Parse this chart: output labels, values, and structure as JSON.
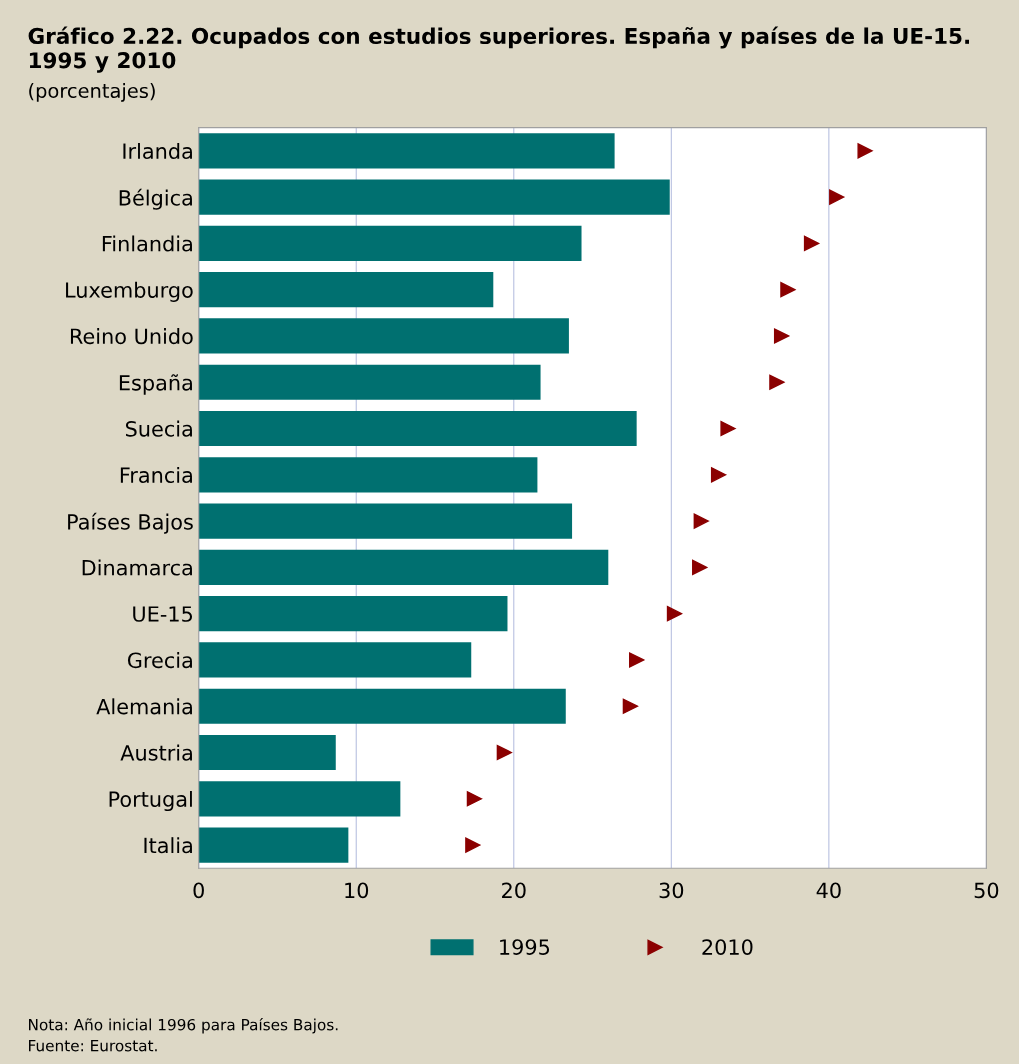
{
  "chart_data": {
    "type": "bar",
    "orientation": "horizontal",
    "title": "Gráfico 2.22. Ocupados con estudios superiores. España y países de la UE-15. 1995 y 2010",
    "subtitle": "(porcentajes)",
    "categories": [
      "Irlanda",
      "Bélgica",
      "Finlandia",
      "Luxemburgo",
      "Reino Unido",
      "España",
      "Suecia",
      "Francia",
      "Países Bajos",
      "Dinamarca",
      "UE-15",
      "Grecia",
      "Alemania",
      "Austria",
      "Portugal",
      "Italia"
    ],
    "series": [
      {
        "name": "1995",
        "color": "#007070",
        "values": [
          26.4,
          29.9,
          24.3,
          18.7,
          23.5,
          21.7,
          27.8,
          21.5,
          23.7,
          26.0,
          19.6,
          17.3,
          23.3,
          8.7,
          12.8,
          9.5
        ]
      },
      {
        "name": "2010",
        "type": "scatter",
        "marker": "triangle",
        "color": "#8b0000",
        "values": [
          42.3,
          40.5,
          38.9,
          37.4,
          37.0,
          36.7,
          33.6,
          33.0,
          31.9,
          31.8,
          30.2,
          27.8,
          27.4,
          19.4,
          17.5,
          17.4
        ]
      }
    ],
    "xlim": [
      0,
      50
    ],
    "xticks": [
      0,
      10,
      20,
      30,
      40,
      50
    ],
    "grid": "x",
    "legend": "bottom",
    "annotations": [
      "Nota: Año inicial 1996 para Países Bajos.",
      "Fuente: Eurostat."
    ]
  }
}
